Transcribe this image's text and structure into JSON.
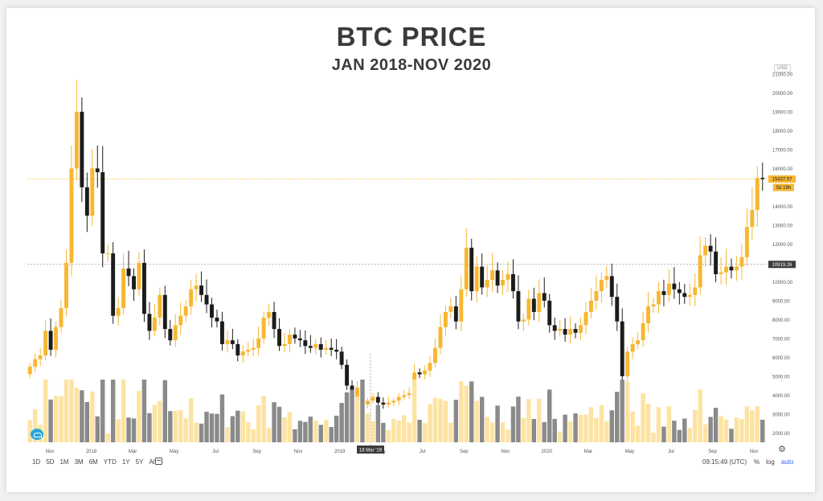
{
  "title": "BTC PRICE",
  "subtitle": "JAN 2018-NOV 2020",
  "currency": "USD",
  "colors": {
    "up": "#f7b731",
    "down": "#1c1c1c",
    "vol_up": "#fde3a2",
    "vol_down": "#8a8a8a",
    "grid": "#e6e6e6"
  },
  "chart_data": {
    "type": "candlestick",
    "title": "BTC PRICE",
    "subtitle": "JAN 2018-NOV 2020",
    "ylim": [
      1500,
      21000
    ],
    "y_ticks": [
      2000,
      3000,
      4000,
      5000,
      6000,
      7000,
      8000,
      9000,
      10000,
      11000,
      12000,
      13000,
      14000,
      15000,
      16000,
      17000,
      18000,
      19000,
      20000,
      21000
    ],
    "y_tick_labels": [
      "2000.00",
      "3000.00",
      "4000.00",
      "5000.00",
      "6000.00",
      "7000.00",
      "8000.00",
      "9000.00",
      "10000.00",
      "11000.00",
      "12000.00",
      "13000.00",
      "14000.00",
      "15000.00",
      "16000.00",
      "17000.00",
      "18000.00",
      "19000.00",
      "20000.00",
      "21000.00"
    ],
    "x_labels": [
      "Nov",
      "2018",
      "Mar",
      "May",
      "Jul",
      "Sep",
      "Nov",
      "2019",
      "May",
      "Jul",
      "Sep",
      "Nov",
      "2020",
      "Mar",
      "May",
      "Jul",
      "Sep",
      "Nov"
    ],
    "highlight_x_label": "18 Mar '19",
    "last_price": "15437.57",
    "countdown": "5d 19h",
    "crosshair_price": "10919.26",
    "closes": [
      5500,
      5900,
      6100,
      7400,
      6400,
      7600,
      8600,
      11000,
      16000,
      19000,
      15000,
      13500,
      16000,
      15800,
      11500,
      11500,
      8200,
      8600,
      10700,
      10300,
      9600,
      11000,
      8300,
      7400,
      8100,
      9300,
      7500,
      6900,
      7700,
      8200,
      8700,
      9600,
      9800,
      9300,
      8800,
      8100,
      7900,
      6700,
      6900,
      6700,
      6100,
      6300,
      6400,
      6500,
      7000,
      8100,
      8400,
      7500,
      6600,
      6700,
      7200,
      7000,
      6900,
      6600,
      6500,
      6700,
      6400,
      6500,
      6400,
      6300,
      5600,
      4500,
      3800,
      4400,
      3500,
      3700,
      3900,
      3600,
      3500,
      3600,
      3700,
      3900,
      4000,
      4100,
      5200,
      5100,
      5300,
      5700,
      6500,
      7600,
      8400,
      8700,
      7900,
      9600,
      11800,
      9500,
      10800,
      9700,
      10100,
      10600,
      9800,
      10100,
      10400,
      9500,
      7900,
      8000,
      9100,
      8400,
      9400,
      9000,
      7700,
      7400,
      7500,
      7200,
      7500,
      7300,
      7700,
      8400,
      9000,
      9500,
      10100,
      10300,
      9200,
      7900,
      5000,
      6300,
      6700,
      6900,
      7800,
      8700,
      8800,
      9500,
      9300,
      9900,
      9600,
      9400,
      9200,
      9300,
      9700,
      11400,
      11900,
      11600,
      10400,
      10500,
      10800,
      10600,
      10800,
      11300,
      12900,
      13800,
      15500,
      15437
    ]
  }
}
